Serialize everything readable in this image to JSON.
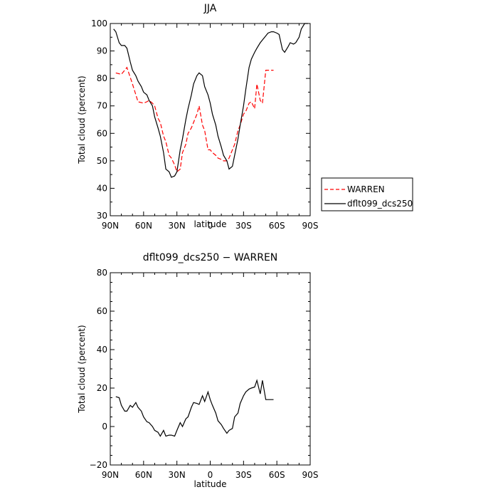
{
  "chart_data": [
    {
      "type": "line",
      "title": "JJA",
      "xlabel": "",
      "ylabel": "Total cloud (percent)",
      "xlim": [
        -90,
        90
      ],
      "ylim": [
        30,
        100
      ],
      "x_ticks": [
        "90N",
        "60N",
        "30N",
        "0",
        "30S",
        "60S",
        "90S"
      ],
      "y_ticks": [
        "30",
        "40",
        "50",
        "60",
        "70",
        "80",
        "90",
        "100"
      ],
      "legend_position": "right",
      "series": [
        {
          "name": "WARREN",
          "color": "#ff0000",
          "dash": "dashed",
          "x": [
            -85,
            -80,
            -77,
            -75,
            -70,
            -65,
            -60,
            -57,
            -55,
            -52,
            -50,
            -47,
            -45,
            -42,
            -40,
            -37,
            -35,
            -32,
            -30,
            -27,
            -25,
            -22,
            -20,
            -17,
            -15,
            -12,
            -10,
            -7,
            -5,
            -2,
            0,
            2,
            5,
            7,
            10,
            12,
            15,
            17,
            20,
            22,
            25,
            27,
            30,
            32,
            35,
            37,
            40,
            42,
            45,
            47,
            50,
            52,
            55,
            57
          ],
          "y": [
            82,
            81.5,
            83,
            84,
            78,
            71.5,
            71,
            71.5,
            72,
            71,
            70,
            65.5,
            64,
            59,
            57,
            52,
            51,
            48.5,
            46,
            47,
            53,
            56,
            60,
            62,
            64,
            67,
            70,
            63,
            61,
            54,
            54,
            53,
            52,
            51,
            50.5,
            50,
            50,
            51,
            54,
            56,
            61,
            63,
            67,
            68,
            71,
            71.5,
            69,
            78,
            72,
            71,
            83,
            83,
            83,
            83
          ]
        },
        {
          "name": "dflt099_dcs250",
          "color": "#000000",
          "dash": "solid",
          "x": [
            -87,
            -85,
            -82,
            -80,
            -77,
            -75,
            -72,
            -70,
            -67,
            -65,
            -62,
            -60,
            -57,
            -55,
            -52,
            -50,
            -47,
            -45,
            -42,
            -40,
            -37,
            -35,
            -32,
            -30,
            -27,
            -25,
            -22,
            -20,
            -17,
            -15,
            -12,
            -10,
            -7,
            -5,
            -2,
            0,
            2,
            5,
            7,
            10,
            12,
            15,
            17,
            20,
            22,
            25,
            27,
            30,
            32,
            35,
            37,
            40,
            42,
            45,
            47,
            50,
            52,
            55,
            57,
            60,
            62,
            65,
            67,
            70,
            72,
            75,
            77,
            80,
            82,
            85,
            88
          ],
          "y": [
            98,
            97,
            93,
            92,
            92,
            91,
            86,
            83,
            81,
            79,
            77,
            75,
            74,
            72,
            70,
            66,
            62,
            59,
            53,
            47,
            46,
            44,
            44.5,
            46,
            54,
            58,
            65,
            69,
            74,
            78,
            81,
            82,
            81,
            77,
            74,
            71,
            67,
            63,
            59,
            55,
            52,
            50,
            47,
            48,
            52,
            58,
            63,
            70,
            76,
            84,
            87,
            89.5,
            91,
            93,
            94,
            95.5,
            96.5,
            97,
            97,
            96.5,
            96,
            90.5,
            89.5,
            91.5,
            93,
            92.5,
            93,
            95,
            98,
            100,
            100
          ]
        }
      ]
    },
    {
      "type": "line",
      "title": "dflt099_dcs250 − WARREN",
      "xlabel": "latitude",
      "ylabel": "Total cloud (percent)",
      "xlim": [
        -90,
        90
      ],
      "ylim": [
        -20,
        80
      ],
      "x_ticks": [
        "90N",
        "60N",
        "30N",
        "0",
        "30S",
        "60S",
        "90S"
      ],
      "y_ticks": [
        "−20",
        "0",
        "20",
        "40",
        "60",
        "80"
      ],
      "series": [
        {
          "color": "#000000",
          "x": [
            -85,
            -82,
            -80,
            -77,
            -75,
            -72,
            -70,
            -67,
            -65,
            -62,
            -60,
            -57,
            -55,
            -52,
            -50,
            -47,
            -45,
            -42,
            -40,
            -37,
            -35,
            -32,
            -30,
            -27,
            -25,
            -22,
            -20,
            -17,
            -15,
            -12,
            -10,
            -7,
            -5,
            -2,
            0,
            2,
            5,
            7,
            10,
            12,
            15,
            17,
            20,
            22,
            25,
            27,
            30,
            32,
            35,
            37,
            40,
            42,
            45,
            47,
            50,
            52,
            55,
            57
          ],
          "y": [
            15.5,
            15,
            11,
            8,
            8,
            11,
            10,
            12.5,
            10,
            8,
            5,
            2.5,
            2,
            0,
            -2,
            -3,
            -5,
            -2,
            -5,
            -4.5,
            -4.5,
            -5,
            -2,
            2,
            0,
            4,
            5,
            10,
            12.5,
            12,
            11.5,
            16,
            13,
            18,
            14,
            11,
            7,
            3,
            1,
            -1,
            -3.5,
            -2,
            -1,
            5,
            7,
            12,
            16,
            18,
            19.5,
            20,
            20.5,
            24,
            17,
            24,
            14,
            14,
            14,
            14
          ]
        }
      ]
    }
  ]
}
